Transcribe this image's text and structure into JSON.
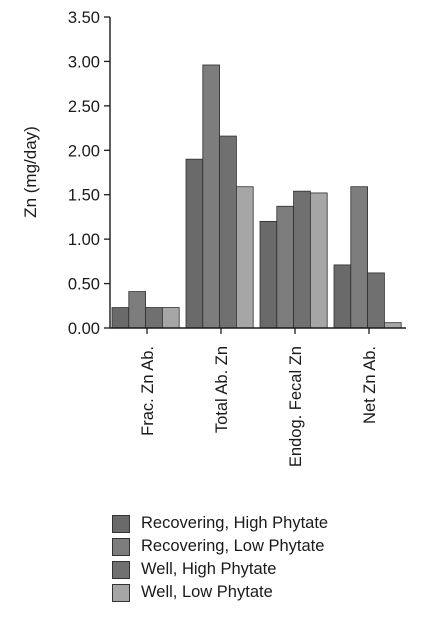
{
  "chart_data": {
    "type": "bar",
    "title": "",
    "xlabel": "",
    "ylabel": "Zn (mg/day)",
    "ylim": [
      0,
      3.5
    ],
    "yticks": [
      "0.00",
      "0.50",
      "1.00",
      "1.50",
      "2.00",
      "2.50",
      "3.00",
      "3.50"
    ],
    "grid": false,
    "legend_position": "bottom",
    "categories": [
      "Frac. Zn Ab.",
      "Total Ab. Zn",
      "Endog. Fecal Zn",
      "Net Zn Ab."
    ],
    "series": [
      {
        "name": "Recovering, High Phytate",
        "color": "#6a6a6a",
        "values": [
          0.23,
          1.9,
          1.2,
          0.71
        ]
      },
      {
        "name": "Recovering, Low Phytate",
        "color": "#7d7d7d",
        "values": [
          0.41,
          2.96,
          1.37,
          1.59
        ]
      },
      {
        "name": "Well, High Phytate",
        "color": "#707070",
        "values": [
          0.23,
          2.16,
          1.54,
          0.62
        ]
      },
      {
        "name": "Well, Low Phytate",
        "color": "#a6a6a6",
        "values": [
          0.23,
          1.59,
          1.52,
          0.06
        ]
      }
    ]
  }
}
